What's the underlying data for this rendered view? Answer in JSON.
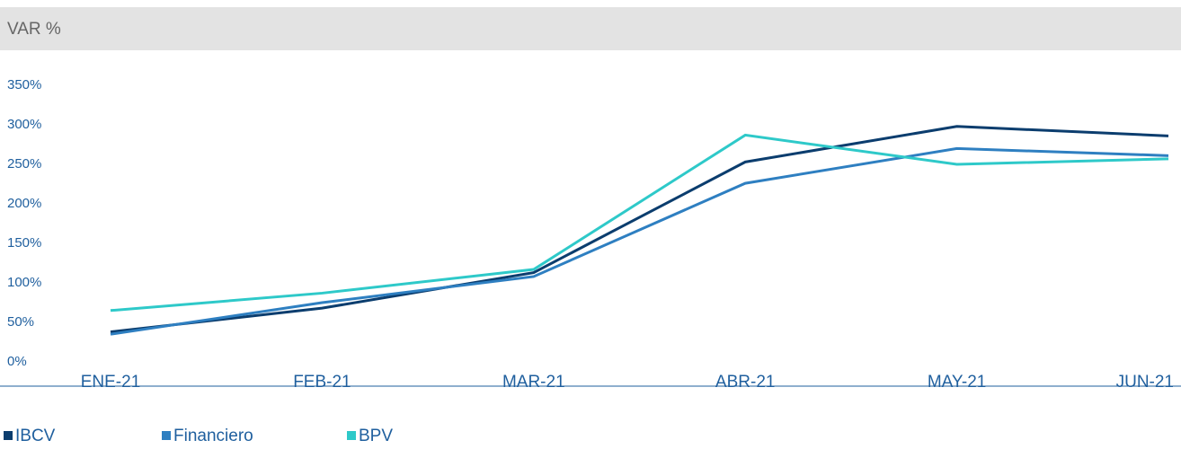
{
  "chart_data": {
    "type": "line",
    "title": "VAR %",
    "categories": [
      "ENE-21",
      "FEB-21",
      "MAR-21",
      "ABR-21",
      "MAY-21",
      "JUN-21"
    ],
    "series": [
      {
        "name": "IBCV",
        "color": "#0b3d6e",
        "values": [
          38,
          68,
          113,
          253,
          298,
          286
        ]
      },
      {
        "name": "Financiero",
        "color": "#2e7fc1",
        "values": [
          35,
          75,
          108,
          226,
          270,
          261
        ]
      },
      {
        "name": "BPV",
        "color": "#2ec9c9",
        "values": [
          65,
          87,
          117,
          287,
          250,
          257
        ]
      }
    ],
    "ylim": [
      0,
      350
    ],
    "yticks": [
      {
        "value": 0,
        "label": "0%"
      },
      {
        "value": 50,
        "label": "50%"
      },
      {
        "value": 100,
        "label": "100%"
      },
      {
        "value": 150,
        "label": "150%"
      },
      {
        "value": 200,
        "label": "200%"
      },
      {
        "value": 250,
        "label": "250%"
      },
      {
        "value": 300,
        "label": "300%"
      },
      {
        "value": 350,
        "label": "350%"
      }
    ],
    "grid": false
  }
}
